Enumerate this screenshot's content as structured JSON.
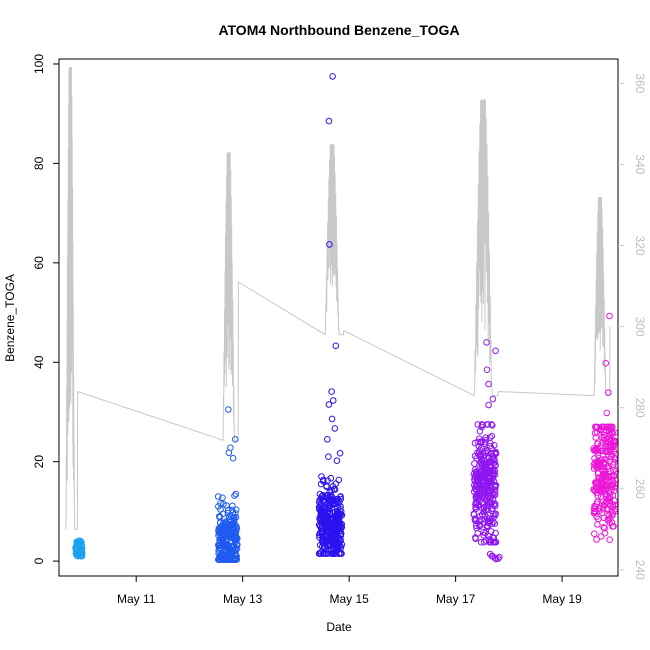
{
  "chart_data": {
    "type": "scatter",
    "title": "ATOM4 Northbound Benzene_TOGA",
    "xlabel": "Date",
    "ylabel": "Benzene_TOGA",
    "x_axis": {
      "type": "date",
      "range": [
        9.55,
        20.05
      ],
      "ticks": [
        11,
        13,
        15,
        17,
        19
      ],
      "tick_labels": [
        "May 11",
        "May 13",
        "May 15",
        "May 17",
        "May 19"
      ]
    },
    "y_axis_left": {
      "range": [
        -3,
        101
      ],
      "ticks": [
        0,
        20,
        40,
        60,
        80,
        100
      ],
      "tick_labels": [
        "0",
        "20",
        "40",
        "60",
        "80",
        "100"
      ]
    },
    "y_axis_right": {
      "range": [
        238.5,
        366
      ],
      "ticks": [
        240,
        260,
        280,
        300,
        320,
        340,
        360
      ],
      "tick_labels": [
        "240",
        "260",
        "280",
        "300",
        "320",
        "340",
        "360"
      ],
      "color": "#c8c8c8"
    },
    "point_series": [
      {
        "color": "#1aa0f0",
        "center": 9.92,
        "spread": 0.13,
        "n": 55,
        "median": 2.4,
        "iqr": [
          1.0,
          4.6
        ],
        "extra": []
      },
      {
        "color": "#1f5bf0",
        "center": 12.72,
        "spread": 0.36,
        "n": 240,
        "median": 4.0,
        "iqr": [
          0.3,
          13.5
        ],
        "extra": [
          [
            12.73,
            30.5
          ],
          [
            12.86,
            24.5
          ],
          [
            12.77,
            22.8
          ],
          [
            12.74,
            21.8
          ],
          [
            12.82,
            20.7
          ]
        ]
      },
      {
        "color": "#2a12f0",
        "center": 14.65,
        "spread": 0.43,
        "n": 320,
        "median": 7.0,
        "iqr": [
          1.5,
          17.0
        ],
        "extra": [
          [
            14.69,
            97.5
          ],
          [
            14.62,
            88.5
          ],
          [
            14.63,
            63.7
          ],
          [
            14.75,
            43.3
          ],
          [
            14.67,
            34.1
          ],
          [
            14.7,
            32.3
          ],
          [
            14.62,
            31.5
          ],
          [
            14.68,
            28.6
          ],
          [
            14.73,
            26.7
          ],
          [
            14.59,
            24.5
          ],
          [
            14.83,
            21.7
          ],
          [
            14.61,
            21.0
          ],
          [
            14.77,
            20.2
          ]
        ]
      },
      {
        "color": "#8f16f0",
        "center": 17.55,
        "spread": 0.42,
        "n": 300,
        "median": 15.0,
        "iqr": [
          3.8,
          27.5
        ],
        "extra": [
          [
            17.58,
            44.0
          ],
          [
            17.75,
            42.3
          ],
          [
            17.59,
            38.5
          ],
          [
            17.62,
            35.6
          ],
          [
            17.7,
            32.6
          ],
          [
            17.62,
            31.4
          ],
          [
            17.65,
            1.4
          ],
          [
            17.7,
            0.9
          ],
          [
            17.74,
            0.6
          ],
          [
            17.8,
            0.5
          ],
          [
            17.68,
            1.0
          ],
          [
            17.76,
            0.4
          ],
          [
            17.82,
            0.8
          ]
        ]
      },
      {
        "color": "#ec17d8",
        "center": 19.8,
        "spread": 0.42,
        "n": 260,
        "median": 17.0,
        "iqr": [
          1.8,
          27.0
        ],
        "extra": [
          [
            19.89,
            49.3
          ],
          [
            19.82,
            39.8
          ],
          [
            19.87,
            33.9
          ],
          [
            19.84,
            29.8
          ],
          [
            19.91,
            26.5
          ]
        ]
      }
    ],
    "line_series": {
      "color": "#c8c8c8",
      "axis": "right",
      "segments": [
        {
          "start": 9.68,
          "end": 9.9,
          "base": 250,
          "peak": 364,
          "end_level": 284
        },
        {
          "start": 12.63,
          "end": 12.92,
          "base": 272,
          "peak": 343,
          "end_level": 311
        },
        {
          "start": 14.55,
          "end": 14.9,
          "base": 298,
          "peak": 345,
          "end_level": 299
        },
        {
          "start": 17.35,
          "end": 17.8,
          "base": 283,
          "peak": 356,
          "end_level": 284
        },
        {
          "start": 19.6,
          "end": 19.9,
          "base": 283,
          "peak": 332,
          "end_level": 300
        }
      ]
    }
  }
}
